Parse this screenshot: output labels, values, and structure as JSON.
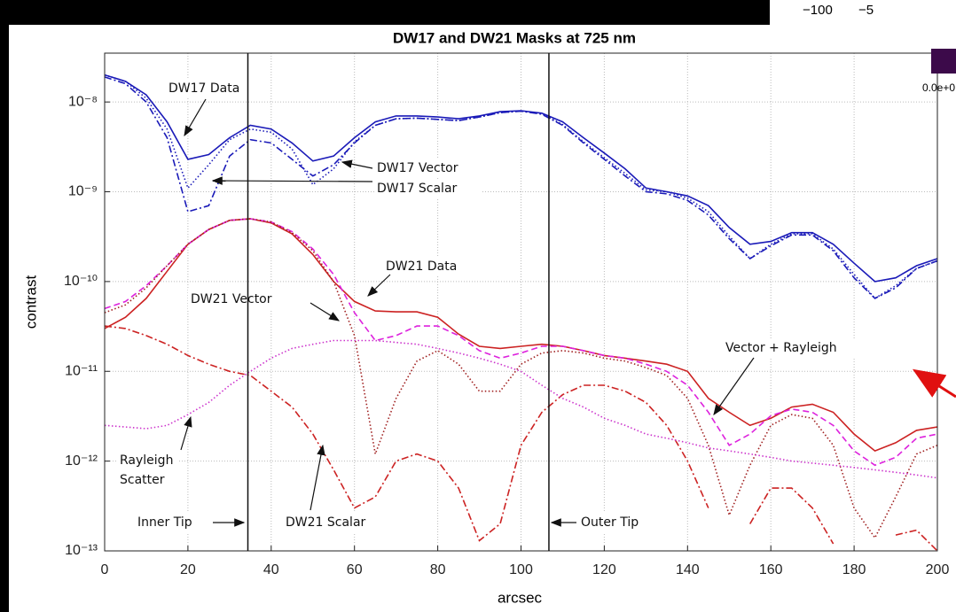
{
  "chart_data": {
    "type": "line",
    "title": "DW17 and DW21 Masks at 725 nm",
    "x_label": "arcsec",
    "y_label": "contrast",
    "ylog": true,
    "grid": true,
    "xlim": [
      0,
      200
    ],
    "ylim": [
      1e-13,
      3.5e-08
    ],
    "xticks": [
      0,
      20,
      40,
      60,
      80,
      100,
      120,
      140,
      160,
      180,
      200
    ],
    "yticks": [
      {
        "value": 1e-13,
        "label": "10⁻¹³"
      },
      {
        "value": 1e-12,
        "label": "10⁻¹²"
      },
      {
        "value": 1e-11,
        "label": "10⁻¹¹"
      },
      {
        "value": 1e-10,
        "label": "10⁻¹⁰"
      },
      {
        "value": 1e-09,
        "label": "10⁻⁹"
      },
      {
        "value": 1e-08,
        "label": "10⁻⁸"
      }
    ],
    "x": [
      0,
      5,
      10,
      15,
      20,
      25,
      30,
      35,
      40,
      45,
      50,
      55,
      60,
      65,
      70,
      75,
      80,
      85,
      90,
      95,
      100,
      105,
      110,
      115,
      120,
      125,
      130,
      135,
      140,
      145,
      150,
      155,
      160,
      165,
      170,
      175,
      180,
      185,
      190,
      195,
      200
    ],
    "series": [
      {
        "color": "#1a1ab8",
        "style": "solid",
        "values": [
          2e-08,
          1.7e-08,
          1.2e-08,
          6e-09,
          2.3e-09,
          2.6e-09,
          4e-09,
          5.5e-09,
          5e-09,
          3.5e-09,
          2.2e-09,
          2.5e-09,
          4e-09,
          6e-09,
          7e-09,
          7e-09,
          6.8e-09,
          6.5e-09,
          7e-09,
          7.8e-09,
          8e-09,
          7.5e-09,
          6e-09,
          4e-09,
          2.7e-09,
          1.8e-09,
          1.1e-09,
          1e-09,
          9e-10,
          7e-10,
          4e-10,
          2.6e-10,
          2.8e-10,
          3.5e-10,
          3.5e-10,
          2.6e-10,
          1.6e-10,
          1e-10,
          1.1e-10,
          1.5e-10,
          1.8e-10
        ]
      },
      {
        "color": "#1a1ab8",
        "style": "dotted",
        "values": [
          2e-08,
          1.7e-08,
          1.1e-08,
          5e-09,
          1.1e-09,
          2e-09,
          3.8e-09,
          5e-09,
          4.6e-09,
          3e-09,
          1.2e-09,
          1.8e-09,
          3.6e-09,
          5.5e-09,
          6.5e-09,
          6.6e-09,
          6.4e-09,
          6.2e-09,
          6.8e-09,
          7.6e-09,
          7.9e-09,
          7.4e-09,
          5.6e-09,
          3.6e-09,
          2.4e-09,
          1.6e-09,
          1.05e-09,
          1e-09,
          8.5e-10,
          6e-10,
          3.2e-10,
          1.8e-10,
          2.6e-10,
          3.4e-10,
          3.4e-10,
          2.3e-10,
          1.2e-10,
          6.5e-11,
          9e-11,
          1.4e-10,
          1.7e-10
        ]
      },
      {
        "color": "#1a1ab8",
        "style": "dashdot",
        "values": [
          1.9e-08,
          1.6e-08,
          1e-08,
          4e-09,
          6e-10,
          7e-10,
          2.5e-09,
          3.8e-09,
          3.5e-09,
          2.3e-09,
          1.5e-09,
          2e-09,
          3.5e-09,
          5.5e-09,
          6.5e-09,
          6.6e-09,
          6.4e-09,
          6.2e-09,
          6.8e-09,
          7.6e-09,
          7.9e-09,
          7.3e-09,
          5.5e-09,
          3.5e-09,
          2.3e-09,
          1.5e-09,
          1e-09,
          9.5e-10,
          8e-10,
          5.5e-10,
          3e-10,
          1.8e-10,
          2.5e-10,
          3.3e-10,
          3.3e-10,
          2.2e-10,
          1.1e-10,
          6.5e-11,
          8.5e-11,
          1.4e-10,
          1.7e-10
        ]
      },
      {
        "color": "#cc2222",
        "style": "solid",
        "values": [
          3e-11,
          4e-11,
          6.5e-11,
          1.3e-10,
          2.6e-10,
          3.8e-10,
          4.8e-10,
          5e-10,
          4.5e-10,
          3.4e-10,
          2e-10,
          1e-10,
          6e-11,
          4.7e-11,
          4.6e-11,
          4.6e-11,
          4e-11,
          2.6e-11,
          1.9e-11,
          1.8e-11,
          1.9e-11,
          2e-11,
          1.9e-11,
          1.7e-11,
          1.5e-11,
          1.4e-11,
          1.3e-11,
          1.2e-11,
          1e-11,
          5e-12,
          3.5e-12,
          2.5e-12,
          3e-12,
          4e-12,
          4.3e-12,
          3.5e-12,
          2e-12,
          1.3e-12,
          1.6e-12,
          2.2e-12,
          2.4e-12
        ]
      },
      {
        "color": "#dd22dd",
        "style": "dashed",
        "values": [
          5e-11,
          6e-11,
          9e-11,
          1.5e-10,
          2.6e-10,
          3.8e-10,
          4.8e-10,
          5e-10,
          4.6e-10,
          3.6e-10,
          2.3e-10,
          1.2e-10,
          4.5e-11,
          2.2e-11,
          2.5e-11,
          3.2e-11,
          3.2e-11,
          2.5e-11,
          1.7e-11,
          1.4e-11,
          1.6e-11,
          1.9e-11,
          1.9e-11,
          1.7e-11,
          1.5e-11,
          1.4e-11,
          1.2e-11,
          1e-11,
          7e-12,
          3.5e-12,
          1.5e-12,
          2e-12,
          3.2e-12,
          3.8e-12,
          3.5e-12,
          2.5e-12,
          1.3e-12,
          9e-13,
          1.1e-12,
          1.8e-12,
          2e-12
        ]
      },
      {
        "color": "#a02020",
        "style": "dotted",
        "values": [
          4.5e-11,
          5.5e-11,
          8.5e-11,
          1.5e-10,
          2.6e-10,
          3.8e-10,
          4.8e-10,
          5e-10,
          4.6e-10,
          3.5e-10,
          2.2e-10,
          1e-10,
          2.5e-11,
          1.2e-12,
          5e-12,
          1.3e-11,
          1.7e-11,
          1.2e-11,
          6e-12,
          6e-12,
          1.2e-11,
          1.6e-11,
          1.7e-11,
          1.6e-11,
          1.4e-11,
          1.3e-11,
          1.1e-11,
          9e-12,
          5e-12,
          1.5e-12,
          2.5e-13,
          9e-13,
          2.5e-12,
          3.3e-12,
          3e-12,
          1.5e-12,
          3e-13,
          1.4e-13,
          4e-13,
          1.2e-12,
          1.5e-12
        ]
      },
      {
        "color": "#cc2222",
        "style": "dashdot",
        "values": [
          3.2e-11,
          3e-11,
          2.5e-11,
          2e-11,
          1.5e-11,
          1.2e-11,
          1e-11,
          9e-12,
          6e-12,
          4e-12,
          2e-12,
          8e-13,
          3e-13,
          4e-13,
          1e-12,
          1.2e-12,
          1e-12,
          5e-13,
          1.3e-13,
          2e-13,
          1.5e-12,
          3.5e-12,
          5.5e-12,
          7e-12,
          7e-12,
          6e-12,
          4.5e-12,
          2.5e-12,
          1e-12,
          3e-13,
          null,
          2e-13,
          5e-13,
          5e-13,
          3e-13,
          1.2e-13,
          null,
          null,
          1.5e-13,
          1.7e-13,
          1e-13
        ]
      },
      {
        "color": "#cc33cc",
        "style": "dotted",
        "values": [
          2.5e-12,
          2.4e-12,
          2.3e-12,
          2.5e-12,
          3.3e-12,
          4.5e-12,
          7e-12,
          1e-11,
          1.4e-11,
          1.8e-11,
          2e-11,
          2.2e-11,
          2.2e-11,
          2.2e-11,
          2.1e-11,
          2e-11,
          1.8e-11,
          1.6e-11,
          1.4e-11,
          1.2e-11,
          1e-11,
          7e-12,
          5e-12,
          4e-12,
          3e-12,
          2.5e-12,
          2e-12,
          1.8e-12,
          1.6e-12,
          1.4e-12,
          1.3e-12,
          1.2e-12,
          1.1e-12,
          1e-12,
          9.5e-13,
          9e-13,
          8.5e-13,
          8e-13,
          7.5e-13,
          7e-13,
          6.5e-13
        ]
      }
    ],
    "vlines": [
      {
        "x": 34.4,
        "label": "Inner Tip"
      },
      {
        "x": 106.7,
        "label": "Outer Tip"
      }
    ],
    "annotations": [
      {
        "lines": [
          "DW17 Data"
        ]
      },
      {
        "lines": [
          "DW17 Vector"
        ]
      },
      {
        "lines": [
          "DW17 Scalar"
        ]
      },
      {
        "lines": [
          "DW21 Data"
        ]
      },
      {
        "lines": [
          "DW21 Vector"
        ]
      },
      {
        "lines": [
          "Vector + Rayleigh"
        ]
      },
      {
        "lines": [
          "Rayleigh",
          "Scatter"
        ]
      },
      {
        "lines": [
          "DW21 Scalar"
        ]
      }
    ],
    "fragments": [
      "−100",
      "−5",
      "0.0e+0"
    ]
  }
}
